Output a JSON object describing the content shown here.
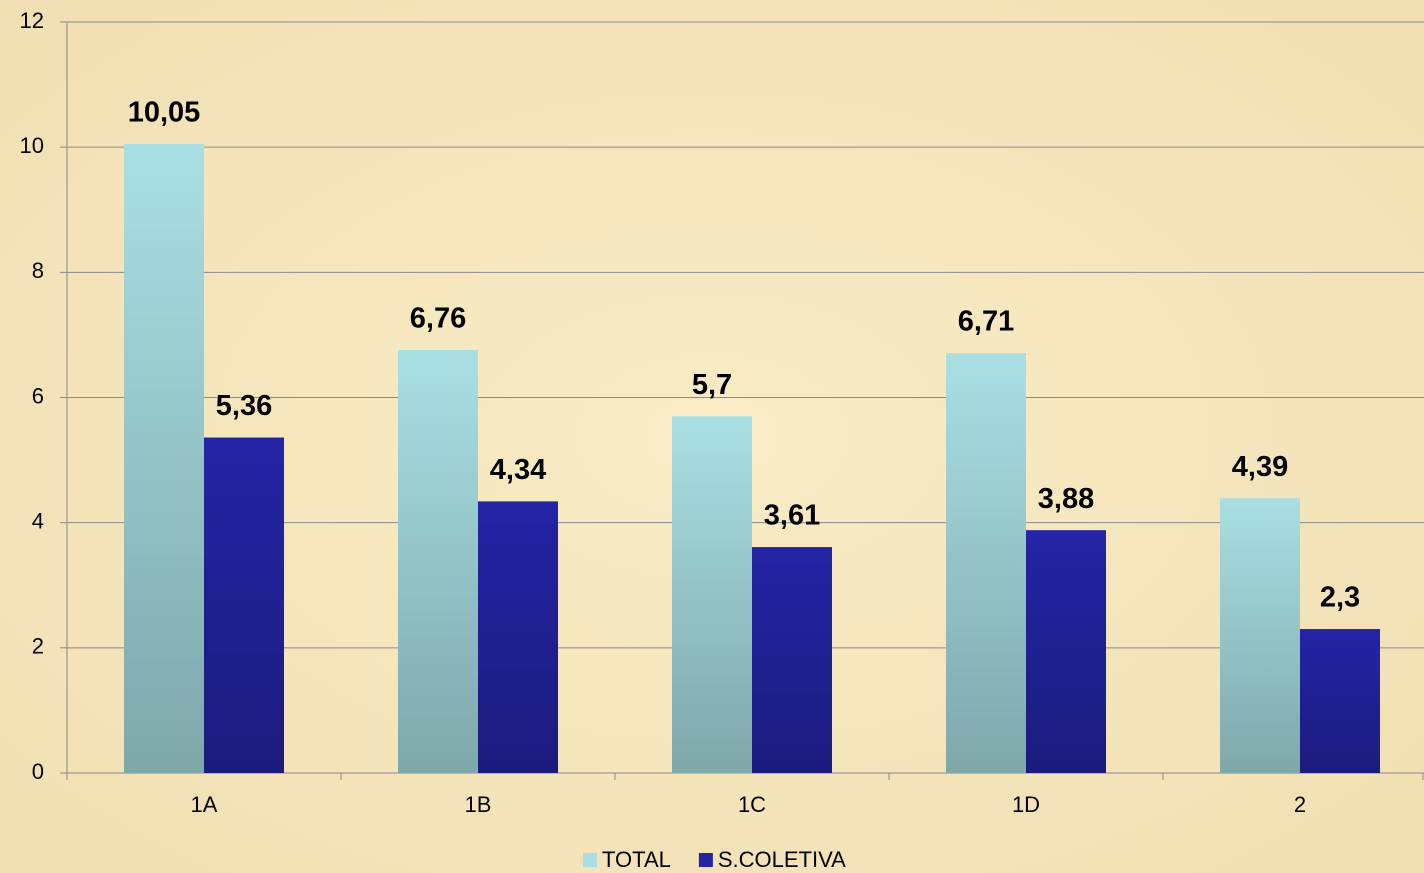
{
  "chart_data": {
    "type": "bar",
    "categories": [
      "1A",
      "1B",
      "1C",
      "1D",
      "2"
    ],
    "series": [
      {
        "name": "TOTAL",
        "color": "#a9dfe3",
        "values": [
          10.05,
          6.76,
          5.7,
          6.71,
          4.39
        ],
        "value_labels": [
          "10,05",
          "6,76",
          "5,7",
          "6,71",
          "4,39"
        ]
      },
      {
        "name": "S.COLETIVA",
        "color": "#2424a6",
        "values": [
          5.36,
          4.34,
          3.61,
          3.88,
          2.3
        ],
        "value_labels": [
          "5,36",
          "4,34",
          "3,61",
          "3,88",
          "2,3"
        ]
      }
    ],
    "ylim": [
      0,
      12
    ],
    "yticks": [
      0,
      2,
      4,
      6,
      8,
      10,
      12
    ],
    "grid": true,
    "legend": "bottom"
  }
}
